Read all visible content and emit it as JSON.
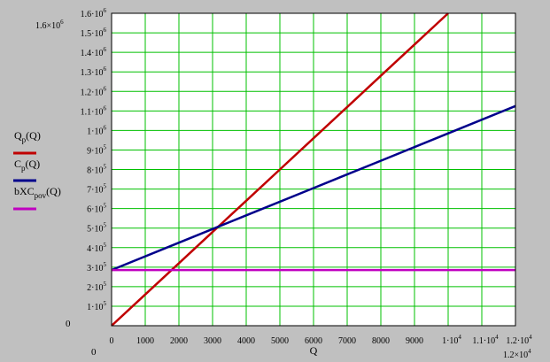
{
  "chart_data": {
    "type": "line",
    "xlabel": "Q",
    "xlim": [
      0,
      12000
    ],
    "ylim": [
      0,
      1600000
    ],
    "grid": true,
    "x_ticks": [
      {
        "value": 0,
        "label": "0"
      },
      {
        "value": 1000,
        "label": "1000"
      },
      {
        "value": 2000,
        "label": "2000"
      },
      {
        "value": 3000,
        "label": "3000"
      },
      {
        "value": 4000,
        "label": "4000"
      },
      {
        "value": 5000,
        "label": "5000"
      },
      {
        "value": 6000,
        "label": "6000"
      },
      {
        "value": 7000,
        "label": "7000"
      },
      {
        "value": 8000,
        "label": "8000"
      },
      {
        "value": 9000,
        "label": "9000"
      },
      {
        "value": 10000,
        "label": "1·10",
        "exp": "4"
      },
      {
        "value": 11000,
        "label": "1.1·10",
        "exp": "4"
      },
      {
        "value": 12000,
        "label": "1.2·10",
        "exp": "4"
      }
    ],
    "y_ticks": [
      {
        "value": 0,
        "label": "0"
      },
      {
        "value": 100000,
        "label": "1·10",
        "exp": "5"
      },
      {
        "value": 200000,
        "label": "2·10",
        "exp": "5"
      },
      {
        "value": 300000,
        "label": "3·10",
        "exp": "5"
      },
      {
        "value": 400000,
        "label": "4·10",
        "exp": "5"
      },
      {
        "value": 500000,
        "label": "5·10",
        "exp": "5"
      },
      {
        "value": 600000,
        "label": "6·10",
        "exp": "5"
      },
      {
        "value": 700000,
        "label": "7·10",
        "exp": "5"
      },
      {
        "value": 800000,
        "label": "8·10",
        "exp": "5"
      },
      {
        "value": 900000,
        "label": "9·10",
        "exp": "5"
      },
      {
        "value": 1000000,
        "label": "1·10",
        "exp": "6"
      },
      {
        "value": 1100000,
        "label": "1.1·10",
        "exp": "6"
      },
      {
        "value": 1200000,
        "label": "1.2·10",
        "exp": "6"
      },
      {
        "value": 1300000,
        "label": "1.3·10",
        "exp": "6"
      },
      {
        "value": 1400000,
        "label": "1.4·10",
        "exp": "6"
      },
      {
        "value": 1500000,
        "label": "1.5·10",
        "exp": "6"
      },
      {
        "value": 1600000,
        "label": "1.6·10",
        "exp": "6"
      }
    ],
    "axis_limit_labels": {
      "x_min": "0",
      "x_max": {
        "label": "1.2×10",
        "exp": "4"
      },
      "y_min": "0",
      "y_max": {
        "label": "1.6×10",
        "exp": "6"
      }
    },
    "series": [
      {
        "name": "Q",
        "name_sub": "p",
        "name_suffix": "(Q)",
        "color": "#c00000",
        "x": [
          0,
          1000,
          2000,
          3000,
          4000,
          5000,
          6000,
          7000,
          8000,
          9000,
          10000
        ],
        "y": [
          0,
          160000,
          320000,
          480000,
          640000,
          800000,
          960000,
          1120000,
          1280000,
          1440000,
          1600000
        ]
      },
      {
        "name": "C",
        "name_sub": "p",
        "name_suffix": "(Q)",
        "color": "#00008b",
        "x": [
          0,
          2000,
          4000,
          6000,
          8000,
          10000,
          12000
        ],
        "y": [
          285000,
          425000,
          565000,
          705000,
          845000,
          985000,
          1125000
        ]
      },
      {
        "name": "bXC",
        "name_sub": "pov",
        "name_suffix": "(Q)",
        "color": "#c000c0",
        "x": [
          0,
          12000
        ],
        "y": [
          285000,
          285000
        ]
      }
    ],
    "legend_placement": "left",
    "colors": {
      "background": "#c0c0c0",
      "plot_background": "#ffffff",
      "grid": "#00c000"
    }
  }
}
